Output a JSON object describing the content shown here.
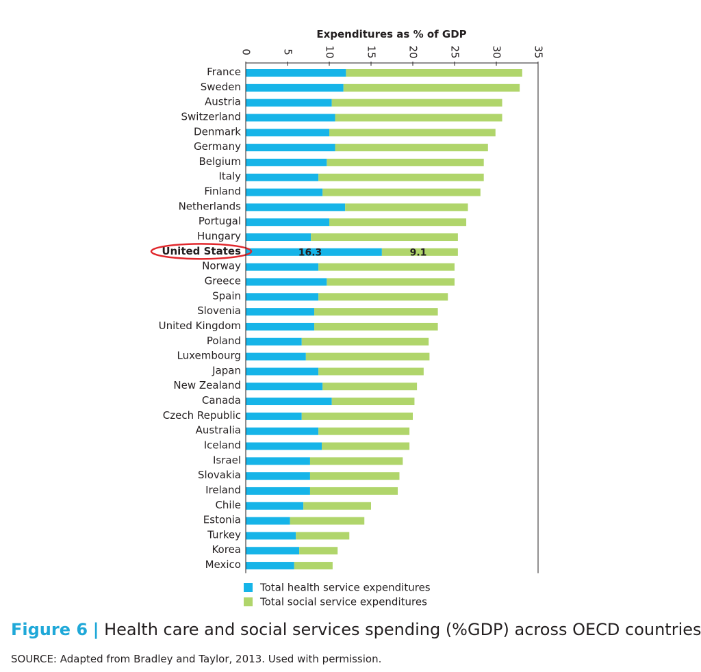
{
  "chart_data": {
    "type": "bar",
    "orientation": "horizontal",
    "stacked": true,
    "xlabel": "Expenditures as % of GDP",
    "xlim": [
      0,
      35
    ],
    "xticks": [
      0,
      5,
      10,
      15,
      20,
      25,
      30,
      35
    ],
    "axis_position": "top",
    "grid": false,
    "legend_position": "bottom",
    "categories": [
      "France",
      "Sweden",
      "Austria",
      "Switzerland",
      "Denmark",
      "Germany",
      "Belgium",
      "Italy",
      "Finland",
      "Netherlands",
      "Portugal",
      "Hungary",
      "United States",
      "Norway",
      "Greece",
      "Spain",
      "Slovenia",
      "United Kingdom",
      "Poland",
      "Luxembourg",
      "Japan",
      "New Zealand",
      "Canada",
      "Czech Republic",
      "Australia",
      "Iceland",
      "Israel",
      "Slovakia",
      "Ireland",
      "Chile",
      "Estonia",
      "Turkey",
      "Korea",
      "Mexico"
    ],
    "series": [
      {
        "name": "Total health service expenditures",
        "color": "#16b4e8",
        "values": [
          12.0,
          11.7,
          10.3,
          10.7,
          10.0,
          10.7,
          9.7,
          8.7,
          9.2,
          11.9,
          10.0,
          7.8,
          16.3,
          8.7,
          9.7,
          8.7,
          8.2,
          8.2,
          6.7,
          7.2,
          8.7,
          9.2,
          10.3,
          6.7,
          8.7,
          9.1,
          7.7,
          7.7,
          7.7,
          6.9,
          5.3,
          6.0,
          6.4,
          5.8
        ]
      },
      {
        "name": "Total social service expenditures",
        "color": "#b0d56b",
        "values": [
          21.1,
          21.1,
          20.4,
          20.0,
          19.9,
          18.3,
          18.8,
          19.8,
          18.9,
          14.7,
          16.4,
          17.6,
          9.1,
          16.3,
          15.3,
          15.5,
          14.8,
          14.8,
          15.2,
          14.8,
          12.6,
          11.3,
          9.9,
          13.3,
          10.9,
          10.5,
          11.1,
          10.7,
          10.5,
          8.1,
          8.9,
          6.4,
          4.6,
          4.6
        ]
      }
    ],
    "highlight": {
      "category": "United States",
      "labels": [
        "16.3",
        "9.1"
      ],
      "color": "#e0262b"
    }
  },
  "caption": {
    "figure_number": "Figure 6",
    "separator": "|",
    "text": "Health care and social services spending (%GDP) across OECD countries.",
    "source": "SOURCE: Adapted from Bradley and Taylor, 2013. Used with permission."
  }
}
